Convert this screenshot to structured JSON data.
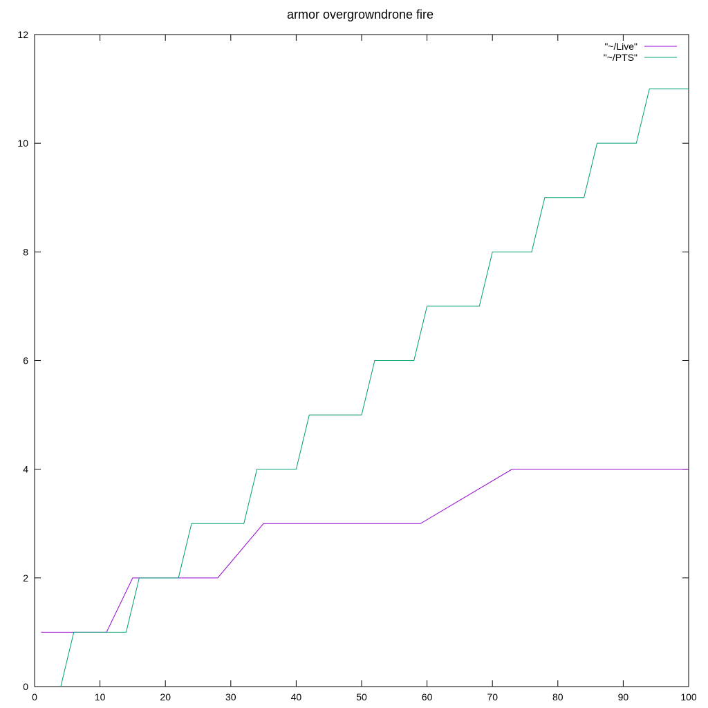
{
  "chart_data": {
    "type": "line",
    "title": "armor overgrowndrone fire",
    "xlabel": "",
    "ylabel": "",
    "xlim": [
      0,
      100
    ],
    "ylim": [
      0,
      12
    ],
    "xticks": [
      0,
      10,
      20,
      30,
      40,
      50,
      60,
      70,
      80,
      90,
      100
    ],
    "yticks": [
      0,
      2,
      4,
      6,
      8,
      10,
      12
    ],
    "grid": false,
    "legend_position": "top-right",
    "series": [
      {
        "name": "\"~/Live\"",
        "color": "#9400d3",
        "x": [
          1,
          11,
          15,
          28,
          35,
          59,
          73,
          100
        ],
        "y": [
          1,
          1,
          2,
          2,
          3,
          3,
          4,
          4
        ]
      },
      {
        "name": "\"~/PTS\"",
        "color": "#009e73",
        "x": [
          4,
          6,
          14,
          16,
          22,
          24,
          32,
          34,
          40,
          42,
          50,
          52,
          58,
          60,
          68,
          70,
          76,
          78,
          84,
          86,
          92,
          94,
          100
        ],
        "y": [
          0,
          1,
          1,
          2,
          2,
          3,
          3,
          4,
          4,
          5,
          5,
          6,
          6,
          7,
          7,
          8,
          8,
          9,
          9,
          10,
          10,
          11,
          11
        ]
      }
    ]
  }
}
